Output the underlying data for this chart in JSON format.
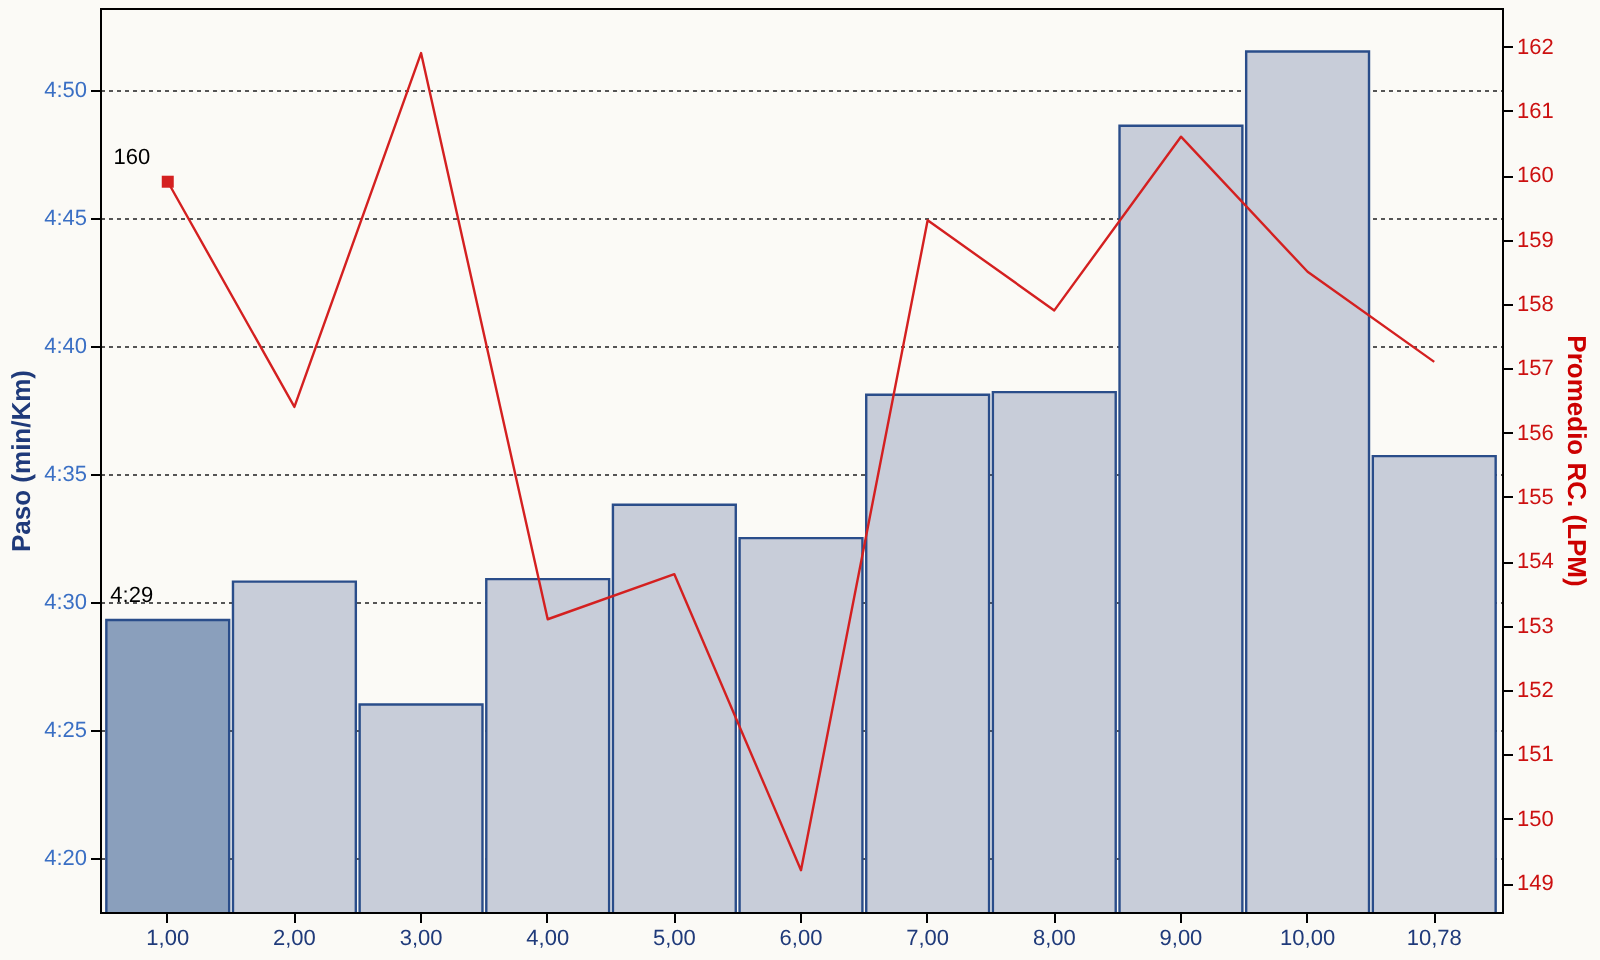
{
  "chart_data": {
    "type": "bar",
    "xlabel": null,
    "ylabel": "Paso (min/Km)",
    "y2label": "Promedio RC. (LPM)",
    "categories": [
      "1,00",
      "2,00",
      "3,00",
      "4,00",
      "5,00",
      "6,00",
      "7,00",
      "8,00",
      "9,00",
      "10,00",
      "10,78"
    ],
    "series": [
      {
        "colors": [
          "#8a9fbc",
          "#c8cdd9",
          "#c8cdd9",
          "#c8cdd9",
          "#c8cdd9",
          "#c8cdd9",
          "#c8cdd9",
          "#c8cdd9",
          "#c8cdd9",
          "#c8cdd9",
          "#c8cdd9"
        ],
        "values": [
          269.3,
          270.8,
          266.0,
          270.9,
          273.8,
          272.5,
          278.1,
          278.2,
          288.6,
          291.5,
          275.7
        ],
        "value_labels": [
          "4:29",
          null,
          null,
          null,
          null,
          null,
          null,
          null,
          null,
          null,
          null
        ]
      },
      {
        "type": "line",
        "axis": "y2",
        "color": "#d42020",
        "values": [
          159.9,
          156.4,
          161.9,
          153.1,
          153.8,
          149.2,
          159.3,
          157.9,
          160.6,
          158.5,
          157.1
        ],
        "value_labels": [
          "160",
          null,
          null,
          null,
          null,
          null,
          null,
          null,
          null,
          null,
          null
        ]
      }
    ],
    "ylim": [
      257.9,
      293.2
    ],
    "yticks": [
      {
        "value": 260,
        "label": "4:20"
      },
      {
        "value": 265,
        "label": "4:25"
      },
      {
        "value": 270,
        "label": "4:30"
      },
      {
        "value": 275,
        "label": "4:35"
      },
      {
        "value": 280,
        "label": "4:40"
      },
      {
        "value": 285,
        "label": "4:45"
      },
      {
        "value": 290,
        "label": "4:50"
      }
    ],
    "y2lim": [
      148.55,
      162.6
    ],
    "y2ticks": [
      149,
      150,
      151,
      152,
      153,
      154,
      155,
      156,
      157,
      158,
      159,
      160,
      161,
      162
    ],
    "grid": "y"
  }
}
